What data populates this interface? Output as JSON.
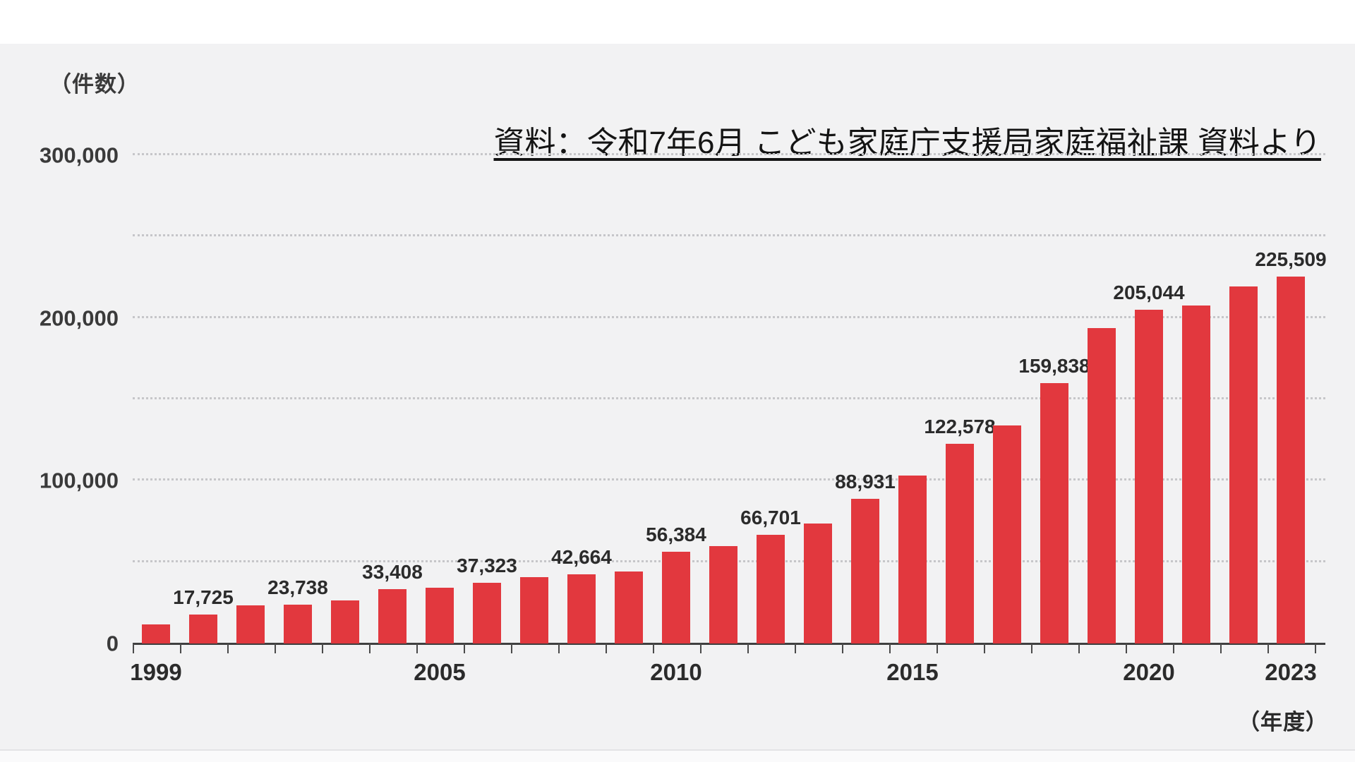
{
  "axis_titles": {
    "y": "（件数）",
    "x": "（年度）"
  },
  "source_note": "資料：令和7年6月 こども家庭庁支援局家庭福祉課 資料より",
  "chart_data": {
    "type": "bar",
    "title": "",
    "ylabel": "（件数）",
    "xlabel": "（年度）",
    "ylim": [
      0,
      300000
    ],
    "gridline_interval": 50000,
    "grid": "dotted horizontal gridlines every 50,000",
    "legend": "none",
    "bar_color": "#e2383e",
    "categories": [
      1999,
      2000,
      2001,
      2002,
      2003,
      2004,
      2005,
      2006,
      2007,
      2008,
      2009,
      2010,
      2011,
      2012,
      2013,
      2014,
      2015,
      2016,
      2017,
      2018,
      2019,
      2020,
      2021,
      2022,
      2023
    ],
    "values": [
      11631,
      17725,
      23274,
      23738,
      26569,
      33408,
      34472,
      37323,
      40639,
      42664,
      44211,
      56384,
      59919,
      66701,
      73802,
      88931,
      103286,
      122578,
      133778,
      159838,
      193780,
      205044,
      207660,
      219170,
      225509
    ],
    "data_labels": [
      "",
      "17,725",
      "",
      "23,738",
      "",
      "33,408",
      "",
      "37,323",
      "",
      "42,664",
      "",
      "56,384",
      "",
      "66,701",
      "",
      "88,931",
      "",
      "122,578",
      "",
      "159,838",
      "",
      "205,044",
      "",
      "",
      "225,509"
    ],
    "y_ticks_labeled": [
      0,
      100000,
      200000,
      300000
    ],
    "y_tick_labels": [
      "0",
      "100,000",
      "200,000",
      "300,000"
    ],
    "x_tick_labels_shown": [
      "1999",
      "2005",
      "2010",
      "2015",
      "2020",
      "2023"
    ]
  }
}
